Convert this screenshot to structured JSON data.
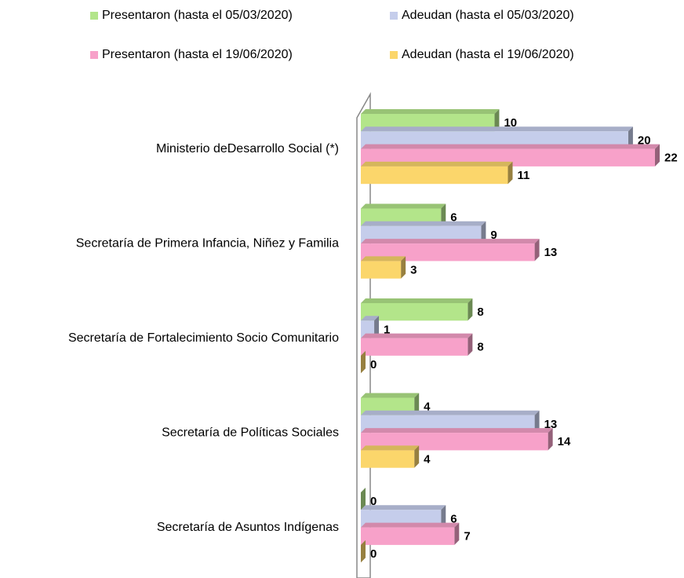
{
  "chart_data": {
    "type": "bar",
    "orientation": "horizontal",
    "categories": [
      "Ministerio deDesarrollo Social (*)",
      "Secretaría de Primera Infancia, Niñez y Familia",
      "Secretaría de Fortalecimiento Socio Comunitario",
      "Secretaría de Políticas Sociales",
      "Secretaría de Asuntos Indígenas"
    ],
    "series": [
      {
        "name": "Presentaron (hasta el 05/03/2020)",
        "color": "#b3e58a",
        "values": [
          10,
          6,
          8,
          4,
          0
        ]
      },
      {
        "name": "Adeudan (hasta el 05/03/2020)",
        "color": "#c5cdeb",
        "values": [
          20,
          9,
          1,
          13,
          6
        ]
      },
      {
        "name": "Presentaron (hasta el 19/06/2020)",
        "color": "#f7a1c9",
        "values": [
          22,
          13,
          8,
          14,
          7
        ]
      },
      {
        "name": "Adeudan (hasta el 19/06/2020)",
        "color": "#fbd66b",
        "values": [
          11,
          3,
          0,
          4,
          0
        ]
      }
    ],
    "legend": "top"
  }
}
